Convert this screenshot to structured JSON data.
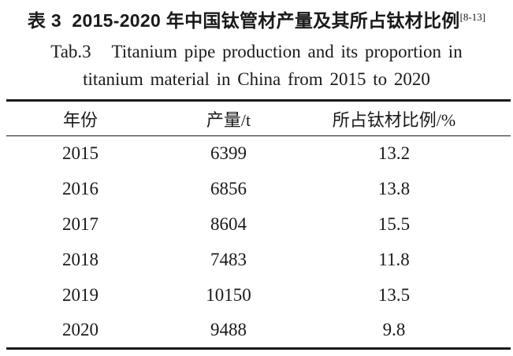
{
  "page": {
    "background": "#ffffff",
    "text_color": "#1a1a1a"
  },
  "caption": {
    "zh_text": "表 3  2015-2020 年中国钛管材产量及其所占钛材比例",
    "citation": "[8-13]",
    "en_line1": "Tab.3   Titanium pipe production and its proportion in",
    "en_line2": "titanium material in China from 2015 to 2020"
  },
  "table": {
    "headers": [
      "年份",
      "产量/t",
      "所占钛材比例/%"
    ],
    "rows": [
      [
        "2015",
        "6399",
        "13.2"
      ],
      [
        "2016",
        "6856",
        "13.8"
      ],
      [
        "2017",
        "8604",
        "15.5"
      ],
      [
        "2018",
        "7483",
        "11.8"
      ],
      [
        "2019",
        "10150",
        "13.5"
      ],
      [
        "2020",
        "9488",
        "9.8"
      ]
    ]
  },
  "chart_data": {
    "type": "table",
    "title": "表 3 2015-2020 年中国钛管材产量及其所占钛材比例 / Tab.3 Titanium pipe production and its proportion in titanium material in China from 2015 to 2020",
    "categories": [
      "2015",
      "2016",
      "2017",
      "2018",
      "2019",
      "2020"
    ],
    "series": [
      {
        "name": "产量/t",
        "values": [
          6399,
          6856,
          8604,
          7483,
          10150,
          9488
        ]
      },
      {
        "name": "所占钛材比例/%",
        "values": [
          13.2,
          13.8,
          15.5,
          11.8,
          13.5,
          9.8
        ]
      }
    ]
  }
}
